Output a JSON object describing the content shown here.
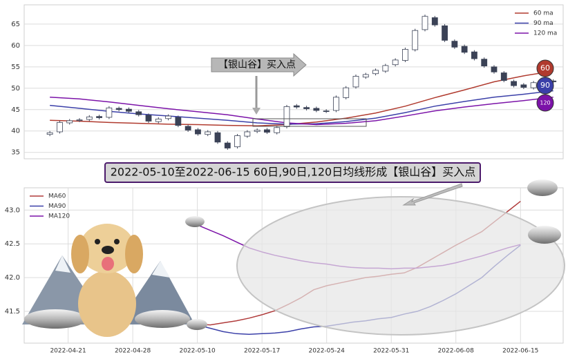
{
  "chart_data": [
    {
      "type": "candlestick",
      "up_color": "#ffffff",
      "down_color": "#3b4256",
      "edge_color": "#3b4256",
      "candles": {
        "open": [
          39.2,
          39.8,
          41.9,
          42.5,
          42.7,
          43.4,
          43.2,
          45.3,
          45.1,
          44.5,
          43.7,
          42.2,
          42.9,
          43.2,
          41.1,
          40.3,
          39.2,
          39.6,
          37.2,
          36.3,
          38.8,
          39.9,
          40.3,
          39.6,
          41.0,
          45.9,
          45.5,
          45.3,
          44.7,
          44.8,
          47.8,
          50.3,
          52.6,
          53.4,
          54.0,
          55.5,
          56.5,
          59.0,
          63.7,
          66.5,
          64.6,
          61.0,
          59.8,
          58.5,
          56.8,
          55.0,
          53.6,
          51.6,
          50.8,
          50.1,
          51.2,
          51.7
        ],
        "high": [
          40.0,
          42.4,
          42.8,
          43.0,
          43.7,
          43.8,
          45.8,
          45.7,
          45.5,
          44.9,
          44.1,
          43.2,
          43.9,
          43.6,
          41.5,
          40.7,
          40.2,
          40.0,
          37.6,
          39.3,
          40.2,
          40.6,
          40.7,
          41.2,
          46.1,
          46.3,
          45.9,
          45.7,
          45.1,
          48.3,
          50.5,
          53.2,
          53.6,
          54.6,
          55.7,
          57.0,
          59.5,
          63.9,
          67.2,
          66.9,
          65.0,
          61.4,
          60.2,
          58.9,
          57.2,
          55.4,
          54.0,
          52.0,
          51.2,
          51.7,
          52.0,
          52.1
        ],
        "low": [
          38.8,
          39.4,
          41.5,
          42.1,
          42.3,
          42.7,
          42.8,
          44.6,
          44.2,
          43.4,
          41.9,
          41.8,
          42.5,
          40.9,
          39.8,
          38.9,
          38.8,
          37.0,
          35.6,
          35.9,
          38.4,
          39.5,
          39.3,
          39.2,
          40.6,
          45.2,
          44.8,
          44.4,
          44.2,
          44.4,
          47.4,
          49.9,
          52.2,
          53.0,
          53.6,
          55.1,
          56.1,
          58.6,
          63.3,
          64.4,
          60.8,
          59.2,
          58.0,
          56.5,
          54.8,
          53.4,
          51.4,
          50.2,
          49.8,
          49.7,
          50.8,
          51.1
        ],
        "close": [
          39.6,
          42.0,
          42.4,
          42.6,
          43.3,
          43.1,
          45.4,
          45.0,
          44.6,
          43.8,
          42.3,
          42.8,
          43.5,
          41.3,
          40.2,
          39.3,
          39.8,
          37.4,
          36.0,
          38.9,
          39.8,
          40.2,
          39.7,
          40.8,
          45.7,
          45.6,
          45.2,
          44.8,
          44.6,
          47.9,
          50.1,
          52.8,
          53.2,
          54.2,
          55.3,
          56.6,
          59.1,
          63.5,
          66.8,
          64.8,
          61.2,
          59.6,
          58.4,
          56.9,
          55.2,
          53.8,
          51.8,
          50.6,
          50.2,
          51.3,
          51.6,
          51.5
        ]
      },
      "series": [
        {
          "name": "60 ma",
          "label": "60",
          "color": "#b03a2e",
          "x": [
            0,
            3,
            6,
            9,
            12,
            15,
            18,
            21,
            24,
            27,
            30,
            33,
            36,
            39,
            42,
            45,
            48,
            51
          ],
          "values": [
            42.5,
            42.3,
            42.0,
            41.8,
            41.6,
            41.5,
            41.3,
            41.2,
            41.5,
            42.1,
            43.0,
            44.2,
            45.8,
            47.8,
            49.6,
            51.5,
            52.9,
            54.0
          ]
        },
        {
          "name": "90 ma",
          "label": "90",
          "color": "#3a3fa8",
          "x": [
            0,
            3,
            6,
            9,
            12,
            15,
            18,
            21,
            24,
            27,
            30,
            33,
            36,
            39,
            42,
            45,
            48,
            51
          ],
          "values": [
            46.0,
            45.3,
            44.6,
            44.0,
            43.5,
            43.0,
            42.5,
            41.9,
            41.6,
            41.7,
            42.2,
            43.0,
            44.3,
            45.8,
            46.9,
            47.9,
            48.6,
            49.4
          ]
        },
        {
          "name": "120 ma",
          "label": "120",
          "color": "#7b12a8",
          "x": [
            0,
            3,
            6,
            9,
            12,
            15,
            18,
            21,
            24,
            27,
            30,
            33,
            36,
            39,
            42,
            45,
            48,
            51
          ],
          "values": [
            47.9,
            47.5,
            46.8,
            46.0,
            45.2,
            44.5,
            43.8,
            42.8,
            41.9,
            41.5,
            41.8,
            42.4,
            43.5,
            44.7,
            45.6,
            46.4,
            47.1,
            47.9
          ]
        }
      ],
      "annotation": "【银山谷】买入点",
      "xlim": [
        -2.6,
        52
      ],
      "ylim": [
        33.5,
        69.5
      ],
      "yticks": [
        35,
        40,
        45,
        50,
        55,
        60,
        65
      ],
      "grid": true,
      "legend": "upper right"
    },
    {
      "type": "line",
      "title": "2022-05-10至2022-06-15 60日,90日,120日均线形成【银山谷】买入点",
      "series": [
        {
          "name": "MA60",
          "color": "#b03a3a",
          "x": [
            0,
            1,
            2,
            3,
            4,
            5,
            6,
            7,
            8,
            9,
            10,
            11,
            12,
            13,
            14,
            15,
            16,
            17,
            18,
            19,
            20,
            21,
            22,
            23,
            24,
            25
          ],
          "values": [
            41.31,
            41.3,
            41.33,
            41.36,
            41.4,
            41.45,
            41.51,
            41.6,
            41.7,
            41.82,
            41.88,
            41.92,
            41.96,
            42.0,
            42.02,
            42.05,
            42.07,
            42.15,
            42.26,
            42.37,
            42.48,
            42.58,
            42.68,
            42.83,
            42.98,
            43.13
          ]
        },
        {
          "name": "MA90",
          "color": "#3a3fa8",
          "x": [
            0,
            1,
            2,
            3,
            4,
            5,
            6,
            7,
            8,
            9,
            10,
            11,
            12,
            13,
            14,
            15,
            16,
            17,
            18,
            19,
            20,
            21,
            22,
            23,
            24,
            25
          ],
          "values": [
            41.3,
            41.25,
            41.2,
            41.17,
            41.16,
            41.17,
            41.18,
            41.2,
            41.24,
            41.27,
            41.28,
            41.31,
            41.34,
            41.36,
            41.39,
            41.41,
            41.46,
            41.5,
            41.57,
            41.66,
            41.76,
            41.88,
            42.0,
            42.17,
            42.33,
            42.48
          ]
        },
        {
          "name": "MA120",
          "color": "#7b12a8",
          "x": [
            0,
            1,
            2,
            3,
            4,
            5,
            6,
            7,
            8,
            9,
            10,
            11,
            12,
            13,
            14,
            15,
            16,
            17,
            18,
            19,
            20,
            21,
            22,
            23,
            24,
            25
          ],
          "values": [
            42.78,
            42.7,
            42.62,
            42.53,
            42.44,
            42.38,
            42.33,
            42.29,
            42.25,
            42.22,
            42.2,
            42.17,
            42.15,
            42.14,
            42.14,
            42.13,
            42.14,
            42.14,
            42.16,
            42.18,
            42.22,
            42.27,
            42.32,
            42.38,
            42.44,
            42.49
          ]
        }
      ],
      "xlim": [
        -13.4,
        28.3
      ],
      "xticks": [
        {
          "value": -10,
          "label": "2022-04-21"
        },
        {
          "value": -5,
          "label": "2022-04-28"
        },
        {
          "value": 0,
          "label": "2022-05-10"
        },
        {
          "value": 5,
          "label": "2022-05-17"
        },
        {
          "value": 10,
          "label": "2022-05-24"
        },
        {
          "value": 15,
          "label": "2022-05-31"
        },
        {
          "value": 20,
          "label": "2022-06-08"
        },
        {
          "value": 25,
          "label": "2022-06-15"
        }
      ],
      "ylim": [
        41.03,
        43.33
      ],
      "yticks": [
        41.5,
        {
          "value": 42,
          "label": "42.0"
        },
        42.5,
        {
          "value": 43,
          "label": "43.0"
        }
      ],
      "grid": true,
      "legend": "upper left"
    }
  ]
}
